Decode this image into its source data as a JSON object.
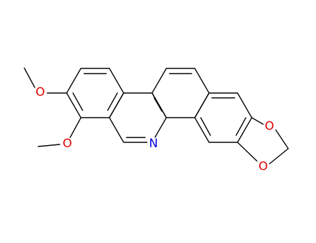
{
  "atoms": [
    {
      "label": "O"
    },
    {
      "label": "O"
    },
    {
      "label": "N"
    },
    {
      "label": "O"
    },
    {
      "label": "O"
    }
  ]
}
